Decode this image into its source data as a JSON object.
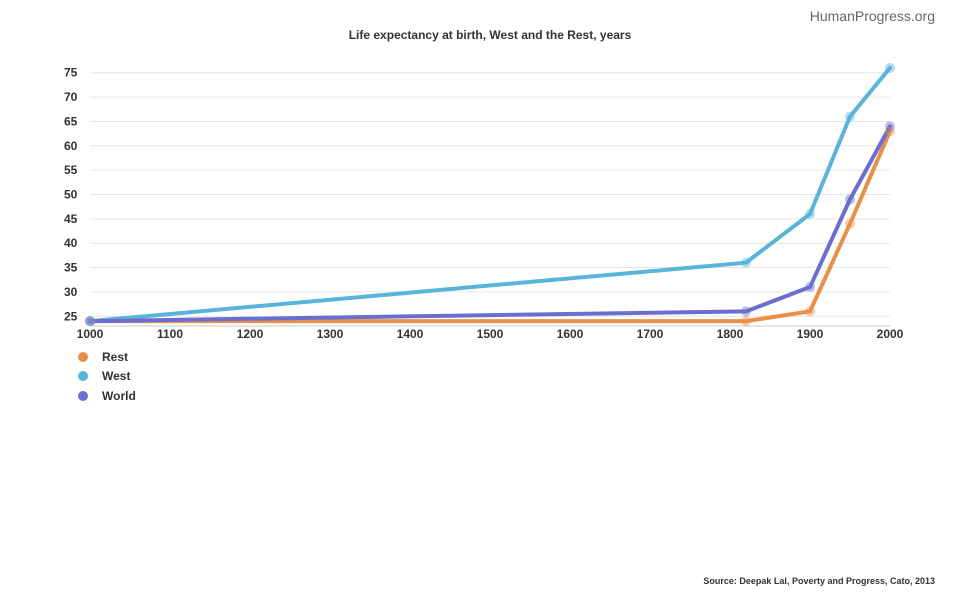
{
  "brand": "HumanProgress.org",
  "source": "Source: Deepak Lal, Poverty and Progress, Cato, 2013",
  "chart_data": {
    "type": "line",
    "title": "Life expectancy at birth, West and the Rest, years",
    "xlabel": "",
    "ylabel": "",
    "xlim": [
      1000,
      2000
    ],
    "ylim": [
      23,
      77
    ],
    "x_ticks": [
      1000,
      1100,
      1200,
      1300,
      1400,
      1500,
      1600,
      1700,
      1800,
      1900,
      2000
    ],
    "y_ticks": [
      25,
      30,
      35,
      40,
      45,
      50,
      55,
      60,
      65,
      70,
      75
    ],
    "grid": true,
    "legend_position": "bottom-left",
    "series": [
      {
        "name": "Rest",
        "color": "#e8904a",
        "points": [
          [
            1000,
            24
          ],
          [
            1820,
            24
          ],
          [
            1900,
            26
          ],
          [
            1950,
            44
          ],
          [
            2000,
            63
          ]
        ]
      },
      {
        "name": "West",
        "color": "#5ab4d9",
        "points": [
          [
            1000,
            24
          ],
          [
            1820,
            36
          ],
          [
            1900,
            46
          ],
          [
            1950,
            66
          ],
          [
            2000,
            76
          ]
        ]
      },
      {
        "name": "World",
        "color": "#6a6fcf",
        "points": [
          [
            1000,
            24
          ],
          [
            1820,
            26
          ],
          [
            1900,
            31
          ],
          [
            1950,
            49
          ],
          [
            2000,
            64
          ]
        ]
      }
    ]
  }
}
